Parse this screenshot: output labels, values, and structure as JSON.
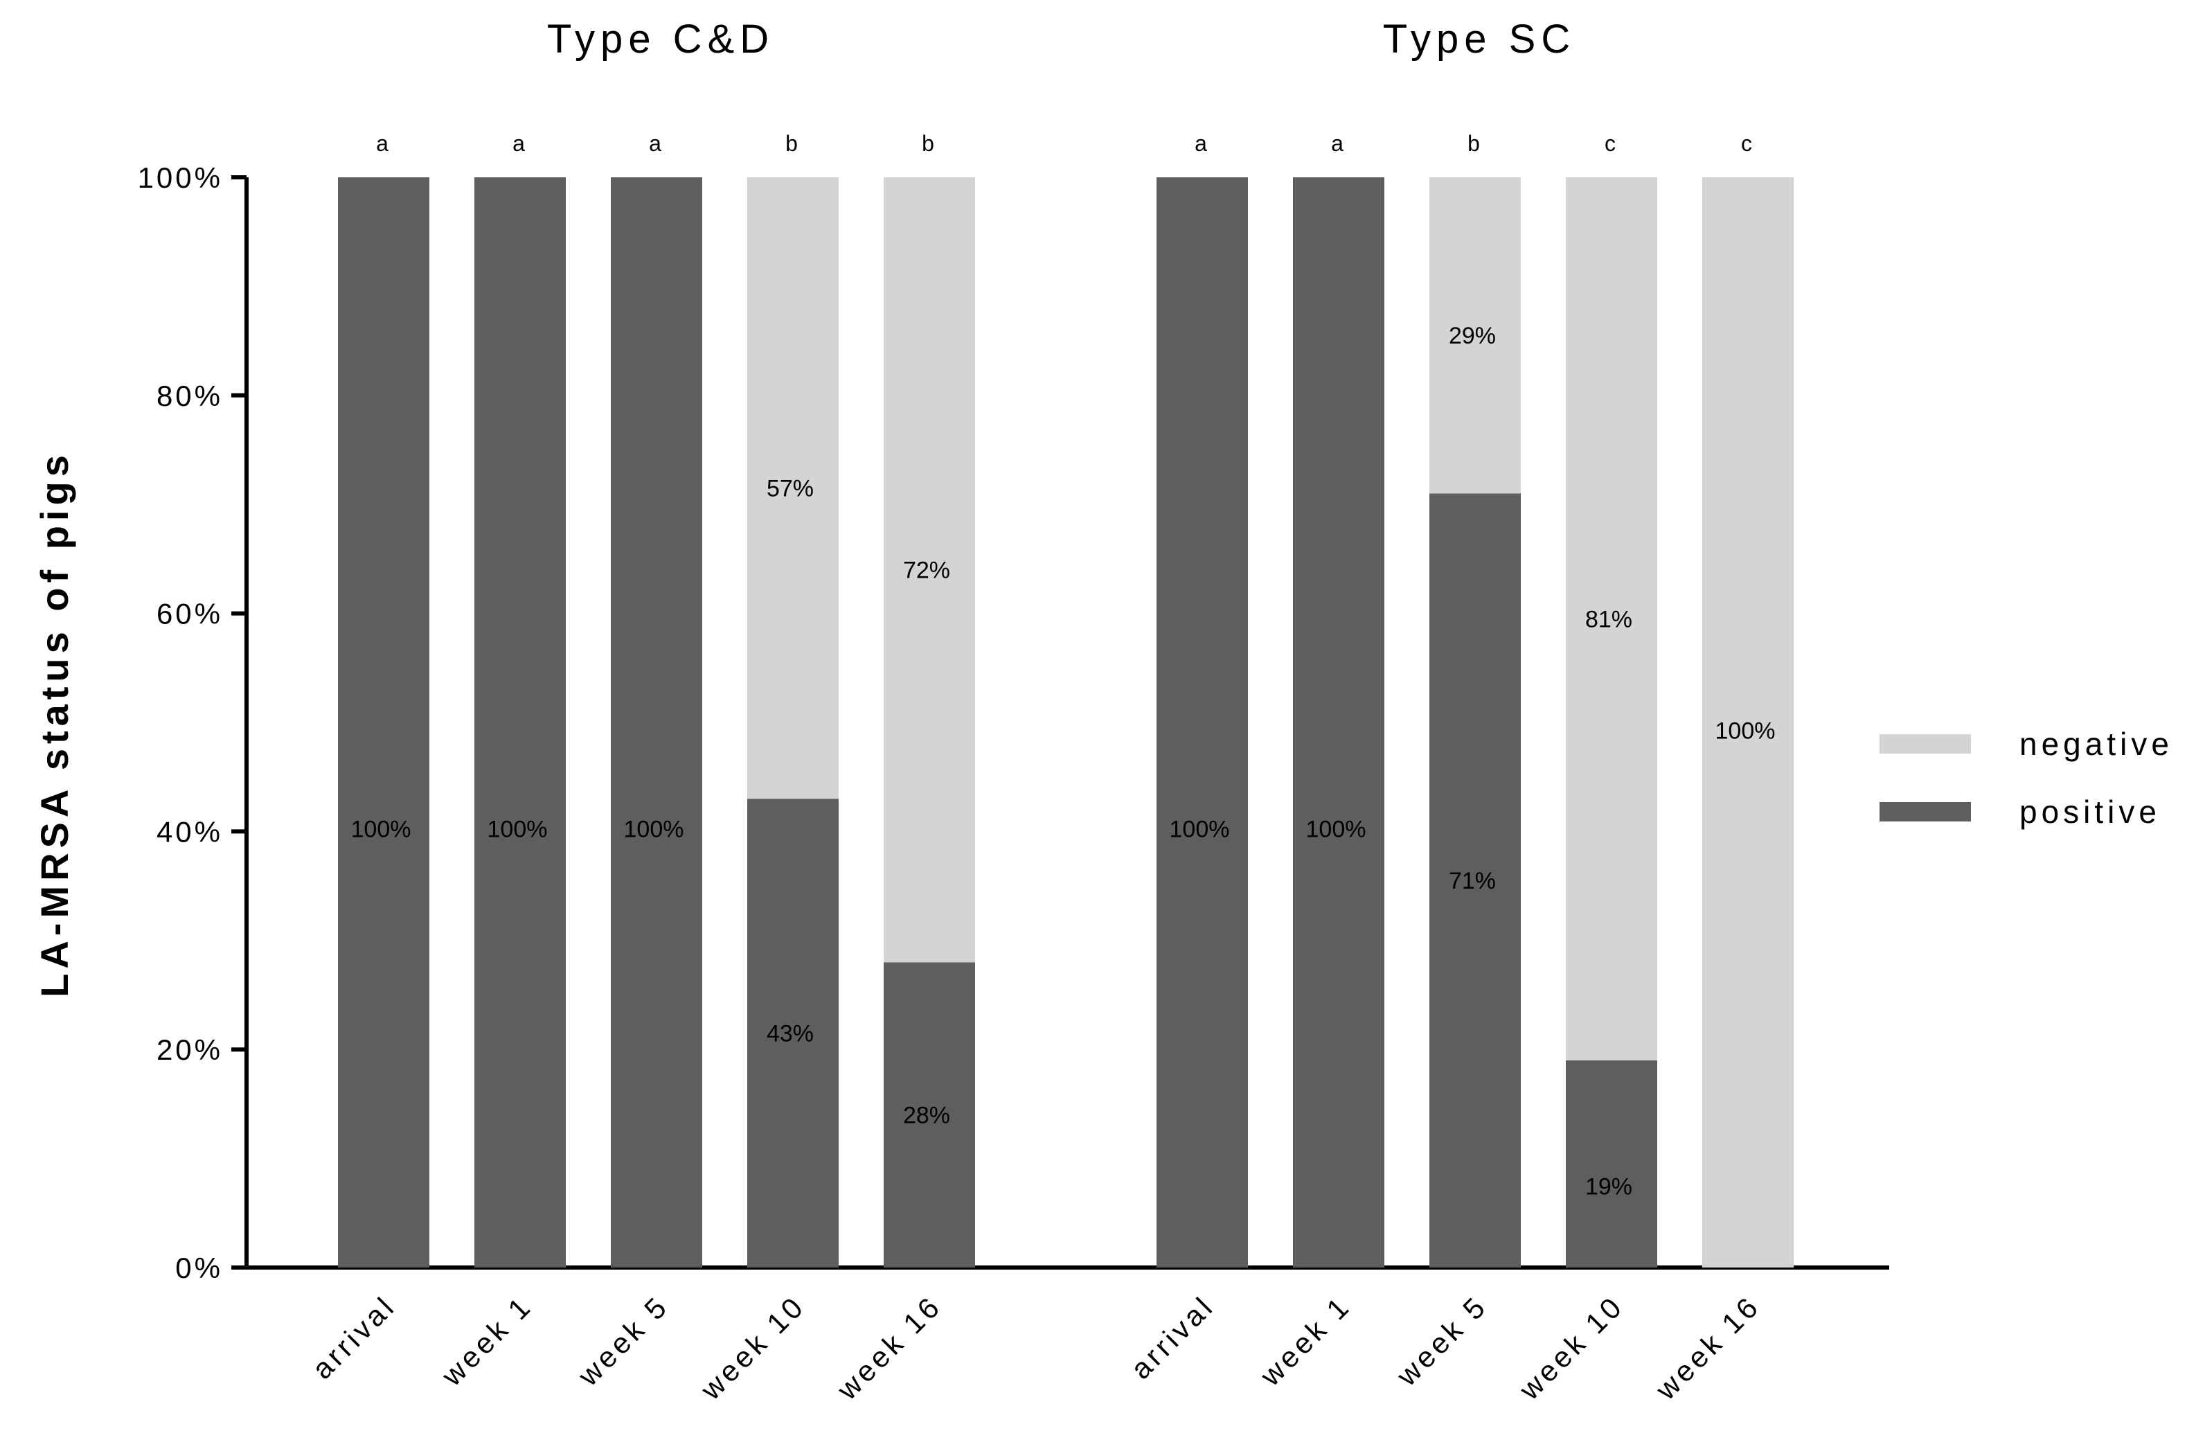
{
  "chart_data": {
    "type": "bar",
    "stacked": true,
    "percent": true,
    "ylabel": "LA-MRSA status of pigs",
    "yticks": [
      "0%",
      "20%",
      "40%",
      "60%",
      "80%",
      "100%"
    ],
    "ylim": [
      0,
      100
    ],
    "legend": {
      "placement": "right",
      "items": [
        {
          "name": "negative",
          "color": "#d4d4d4"
        },
        {
          "name": "positive",
          "color": "#5e5e5e"
        }
      ]
    },
    "groups": [
      {
        "title": "Type C&D",
        "categories": [
          "arrival",
          "week 1",
          "week 5",
          "week 10",
          "week 16"
        ],
        "letters": [
          "a",
          "a",
          "a",
          "b",
          "b"
        ],
        "series": [
          {
            "name": "positive",
            "values": [
              100,
              100,
              100,
              43,
              28
            ],
            "labels": [
              "100%",
              "100%",
              "100%",
              "43%",
              "28%"
            ]
          },
          {
            "name": "negative",
            "values": [
              0,
              0,
              0,
              57,
              72
            ],
            "labels": [
              "",
              "",
              "",
              "57%",
              "72%"
            ]
          }
        ]
      },
      {
        "title": "Type SC",
        "categories": [
          "arrival",
          "week 1",
          "week 5",
          "week 10",
          "week 16"
        ],
        "letters": [
          "a",
          "a",
          "b",
          "c",
          "c"
        ],
        "series": [
          {
            "name": "positive",
            "values": [
              100,
              100,
              71,
              19,
              0
            ],
            "labels": [
              "100%",
              "100%",
              "71%",
              "19%",
              ""
            ]
          },
          {
            "name": "negative",
            "values": [
              0,
              0,
              29,
              81,
              100
            ],
            "labels": [
              "",
              "",
              "29%",
              "81%",
              "100%"
            ]
          }
        ]
      }
    ]
  }
}
